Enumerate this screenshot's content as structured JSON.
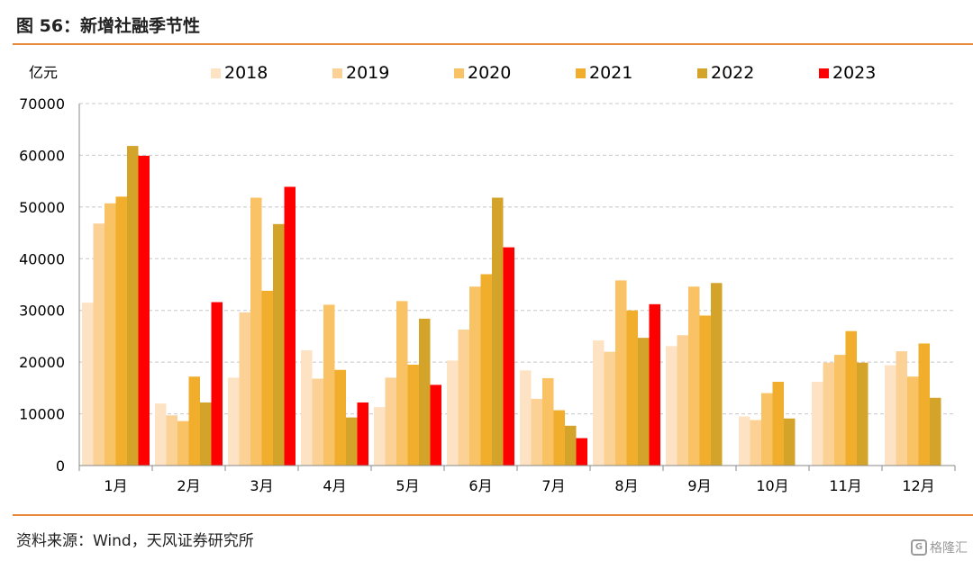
{
  "title": "图 56：新增社融季节性",
  "source": "资料来源：Wind，天风证券研究所",
  "watermark": "格隆汇",
  "watermark_icon": "G",
  "chart_data": {
    "type": "bar",
    "unit_label": "亿元",
    "categories": [
      "1月",
      "2月",
      "3月",
      "4月",
      "5月",
      "6月",
      "7月",
      "8月",
      "9月",
      "10月",
      "11月",
      "12月"
    ],
    "series": [
      {
        "name": "2018",
        "color": "#fde3c4",
        "values": [
          31500,
          12000,
          17000,
          22300,
          11300,
          20300,
          18400,
          24200,
          23100,
          9500,
          16200,
          19400
        ]
      },
      {
        "name": "2019",
        "color": "#fcd195",
        "values": [
          46800,
          9700,
          29600,
          16800,
          17000,
          26300,
          12900,
          22000,
          25200,
          8800,
          19900,
          22100
        ]
      },
      {
        "name": "2020",
        "color": "#f9c264",
        "values": [
          50700,
          8600,
          51800,
          31100,
          31800,
          34600,
          16900,
          35800,
          34600,
          14000,
          21400,
          17200
        ]
      },
      {
        "name": "2021",
        "color": "#f0ae2c",
        "values": [
          52000,
          17200,
          33800,
          18500,
          19500,
          37000,
          10700,
          30000,
          29000,
          16200,
          26000,
          23600
        ]
      },
      {
        "name": "2022",
        "color": "#d4a32a",
        "values": [
          61800,
          12200,
          46700,
          9300,
          28400,
          51800,
          7700,
          24700,
          35300,
          9100,
          19900,
          13100
        ]
      },
      {
        "name": "2023",
        "color": "#ff0000",
        "values": [
          59900,
          31600,
          53900,
          12200,
          15600,
          42200,
          5300,
          31200,
          null,
          null,
          null,
          null
        ]
      }
    ],
    "y_ticks": [
      0,
      10000,
      20000,
      30000,
      40000,
      50000,
      60000,
      70000
    ],
    "ylim": [
      0,
      70000
    ],
    "grid": true,
    "legend_position": "top"
  }
}
